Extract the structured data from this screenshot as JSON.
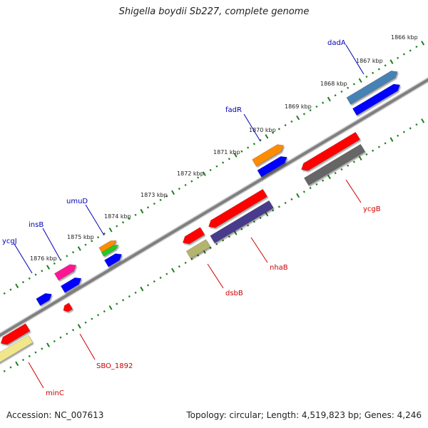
{
  "title": "Shigella boydii Sb227, complete genome",
  "footer": {
    "accession": "Accession: NC_007613",
    "summary": "Topology: circular; Length: 4,519,823 bp; Genes: 4,246"
  },
  "colors": {
    "backbone": "#7f7f7f",
    "scale_ticks": "#1e7f1e",
    "forward_label": "#0000b4",
    "reverse_label": "#cc0000"
  },
  "scale_labels": [
    "1866 kbp",
    "1867 kbp",
    "1868 kbp",
    "1869 kbp",
    "1870 kbp",
    "1871 kbp",
    "1872 kbp",
    "1873 kbp",
    "1874 kbp",
    "1875 kbp",
    "1876 kbp"
  ],
  "forward_genes": [
    {
      "name": "dadA",
      "color": "#4682b4"
    },
    {
      "name": "fadR",
      "color": "#ff8c00"
    },
    {
      "name": "umuD",
      "color": "#ff8c00"
    },
    {
      "name": "insB",
      "color": "#ff1493"
    },
    {
      "name": "ycgJ",
      "color": "#0000ff"
    }
  ],
  "reverse_genes": [
    {
      "name": "ycgB",
      "color": "#ff0000"
    },
    {
      "name": "nhaB",
      "color": "#ff0000"
    },
    {
      "name": "dsbB",
      "color": "#ff0000"
    },
    {
      "name": "SBO_1892",
      "color": "#ff0000"
    },
    {
      "name": "minC",
      "color": "#ff0000"
    }
  ]
}
